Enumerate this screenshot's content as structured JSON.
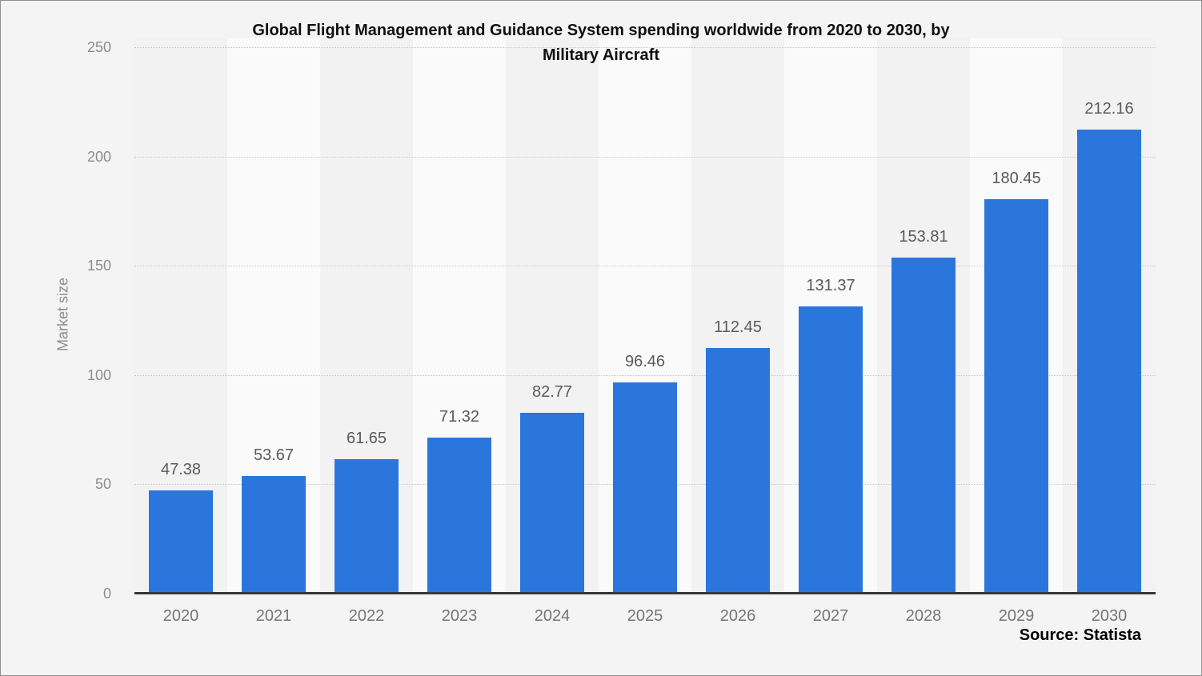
{
  "header": {
    "title_line1": "Global Flight Management and Guidance System spending worldwide from 2020 to 2030, by",
    "title_line2": "Military Aircraft"
  },
  "source": {
    "label": "Source: Statista"
  },
  "colors": {
    "bar": "#2b76dd",
    "background": "#f4f4f4",
    "stripe_dark": "#f2f2f2",
    "stripe_light": "#fafafa",
    "gridline": "#c9c9c9",
    "axis_line": "#373737",
    "value_label": "#5a5a5a",
    "tick_label": "#8c8c8c",
    "year_label": "#757575"
  },
  "chart_data": {
    "type": "bar",
    "title": "Global Flight Management and Guidance System spending worldwide from 2020 to 2030, by Military Aircraft",
    "categories": [
      "2020",
      "2021",
      "2022",
      "2023",
      "2024",
      "2025",
      "2026",
      "2027",
      "2028",
      "2029",
      "2030"
    ],
    "values": [
      47.38,
      53.67,
      61.65,
      71.32,
      82.77,
      96.46,
      112.45,
      131.37,
      153.81,
      180.45,
      212.16
    ],
    "xlabel": "",
    "ylabel": "Market size",
    "ylim": [
      0,
      250
    ],
    "yticks": [
      0,
      50,
      100,
      150,
      200,
      250
    ],
    "grid": "horizontal-dotted",
    "legend": "none",
    "value_labels": true,
    "source": "Source: Statista"
  }
}
